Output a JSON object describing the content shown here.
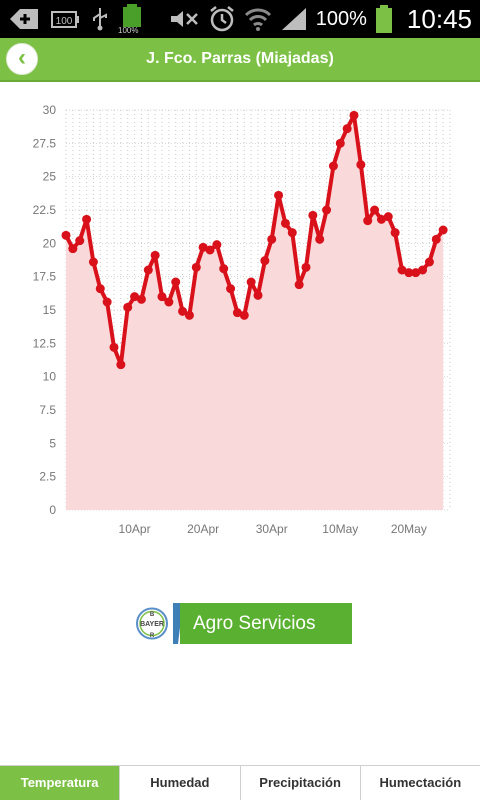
{
  "status_bar": {
    "battery_small_label": "100%",
    "battery_pct": "100%",
    "time": "10:45",
    "icons": [
      "add-notification-icon",
      "battery-100-icon",
      "usb-icon",
      "battery-charging-icon",
      "mute-icon",
      "alarm-icon",
      "wifi-icon",
      "signal-icon",
      "battery-icon"
    ]
  },
  "header": {
    "title": "J. Fco. Parras (Miajadas)",
    "back_icon": "back-chevron-icon"
  },
  "colors": {
    "green": "#7cc145",
    "line": "#d9111b",
    "fill": "#f9d9d9",
    "grid": "#cfcfcf"
  },
  "chart_data": {
    "type": "area",
    "ylim": [
      0,
      30
    ],
    "y_ticks": [
      "0",
      "2.5",
      "5",
      "7.5",
      "10",
      "12.5",
      "15",
      "17.5",
      "20",
      "22.5",
      "25",
      "27.5",
      "30"
    ],
    "x_ticks": [
      {
        "label": "10Apr",
        "day": 10
      },
      {
        "label": "20Apr",
        "day": 20
      },
      {
        "label": "30Apr",
        "day": 30
      },
      {
        "label": "10May",
        "day": 40
      },
      {
        "label": "20May",
        "day": 50
      }
    ],
    "x_range": [
      0,
      56
    ],
    "values": [
      20.6,
      19.6,
      20.2,
      21.8,
      18.6,
      16.6,
      15.6,
      12.2,
      10.9,
      15.2,
      16.0,
      15.8,
      18.0,
      19.1,
      16.0,
      15.6,
      17.1,
      14.9,
      14.6,
      18.2,
      19.7,
      19.5,
      19.9,
      18.1,
      16.6,
      14.8,
      14.6,
      17.1,
      16.1,
      18.7,
      20.3,
      23.6,
      21.5,
      20.8,
      16.9,
      18.2,
      22.1,
      20.3,
      22.5,
      25.8,
      27.5,
      28.6,
      29.6,
      25.9,
      21.7,
      22.5,
      21.8,
      22.0,
      20.8,
      18.0,
      17.8,
      17.8,
      18.0,
      18.6,
      20.3,
      21.0
    ]
  },
  "logo": {
    "mark_text": "BAYER",
    "text": "Agro Servicios"
  },
  "tabs": [
    {
      "label": "Temperatura",
      "active": true
    },
    {
      "label": "Humedad",
      "active": false
    },
    {
      "label": "Precipitación",
      "active": false
    },
    {
      "label": "Humectación",
      "active": false
    }
  ]
}
